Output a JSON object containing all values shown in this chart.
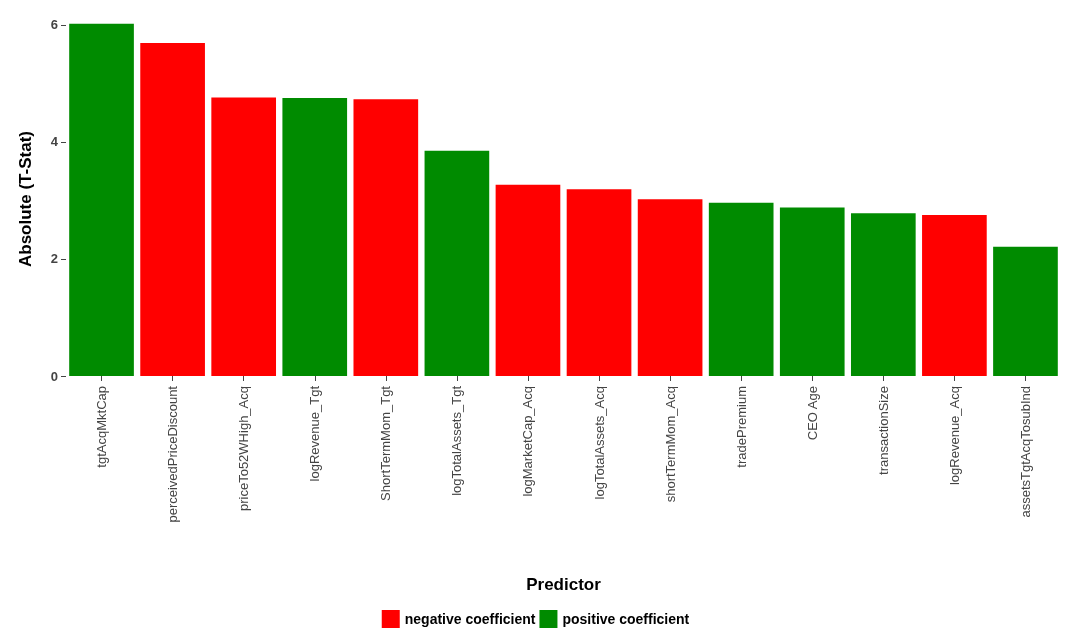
{
  "chart_data": {
    "type": "bar",
    "stacked": true,
    "xlabel": "Predictor",
    "ylabel": "Absolute (T-Stat)",
    "categories": [
      "tgtAcqMktCap",
      "perceivedPriceDiscount",
      "priceTo52WHigh_Acq",
      "logRevenue_Tgt",
      "ShortTermMom_Tgt",
      "logTotalAssets_Tgt",
      "logMarketCap_Acq",
      "logTotalAssets_Acq",
      "shortTermMom_Acq",
      "tradePremium",
      "CEO Age",
      "transactionSize",
      "logRevenue_Acq",
      "assetsTgtAcqTosubInd"
    ],
    "series": [
      {
        "name": "negative coefficient",
        "color": "#ff0000",
        "values": [
          null,
          5.69,
          4.76,
          null,
          4.73,
          null,
          3.27,
          3.19,
          3.02,
          null,
          null,
          null,
          2.75,
          null
        ]
      },
      {
        "name": "positive coefficient",
        "color": "#008b00",
        "values": [
          6.02,
          null,
          null,
          4.75,
          null,
          3.85,
          null,
          null,
          null,
          2.96,
          2.88,
          2.78,
          null,
          2.21
        ]
      }
    ],
    "ylim": [
      0,
      6.05
    ],
    "yticks": [
      0,
      2,
      4,
      6
    ],
    "grid": false,
    "legend": "bottom"
  }
}
